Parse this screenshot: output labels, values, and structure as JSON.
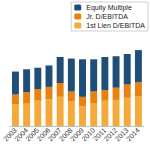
{
  "chart_data": {
    "type": "bar",
    "categories": [
      "2003",
      "2004",
      "2005",
      "2006",
      "2007",
      "2008",
      "2009",
      "2010",
      "2011",
      "2012",
      "2013",
      "2014"
    ],
    "series": [
      {
        "name": "1st Lien D/EBITDA",
        "color": "#f5a93a",
        "values": [
          2.8,
          3.0,
          3.3,
          3.5,
          3.8,
          3.2,
          2.6,
          3.0,
          3.3,
          3.4,
          3.7,
          3.9
        ]
      },
      {
        "name": "Jr. D/EBITDA",
        "color": "#e8820c",
        "values": [
          1.3,
          1.4,
          1.5,
          1.6,
          1.8,
          1.3,
          1.2,
          1.5,
          1.4,
          1.6,
          1.7,
          1.8
        ]
      },
      {
        "name": "Equity Multiple",
        "color": "#1f4e79",
        "values": [
          3.0,
          3.0,
          2.8,
          2.8,
          3.4,
          4.3,
          4.9,
          4.2,
          4.3,
          4.1,
          4.0,
          4.2
        ]
      }
    ],
    "ylim": [
      0,
      12
    ],
    "yticks": [
      0,
      2,
      4,
      6,
      8,
      10,
      12
    ],
    "stacked": true,
    "grid": false,
    "legend": "upper right",
    "tick_labels": "x"
  }
}
